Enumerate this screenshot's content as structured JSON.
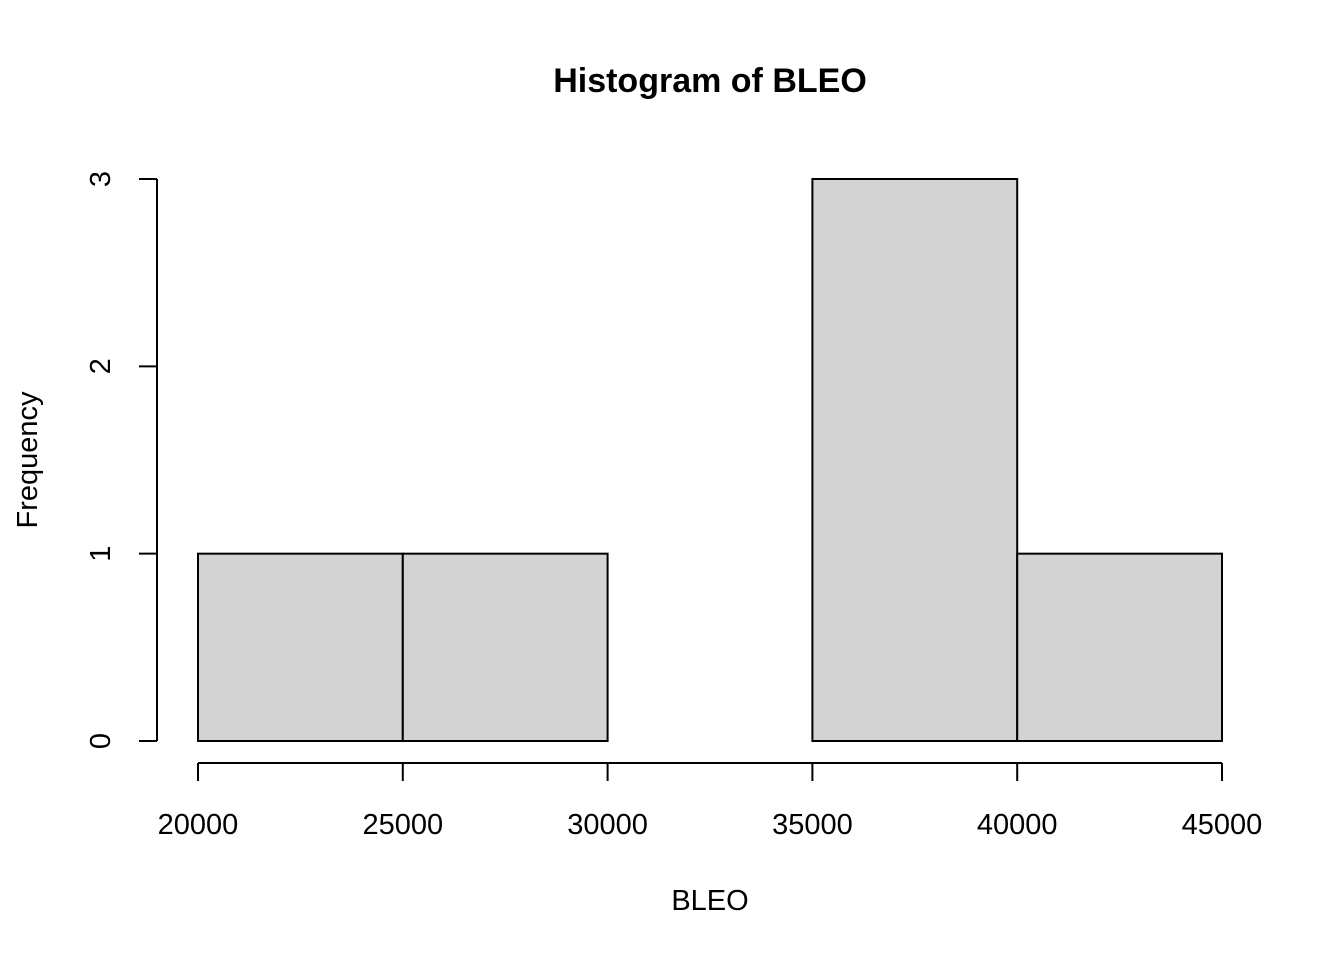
{
  "chart_data": {
    "type": "bar",
    "subtype": "histogram",
    "title": "Histogram of BLEO",
    "xlabel": "BLEO",
    "ylabel": "Frequency",
    "bins": [
      {
        "start": 20000,
        "end": 25000,
        "count": 1
      },
      {
        "start": 25000,
        "end": 30000,
        "count": 1
      },
      {
        "start": 30000,
        "end": 35000,
        "count": 0
      },
      {
        "start": 35000,
        "end": 40000,
        "count": 3
      },
      {
        "start": 40000,
        "end": 45000,
        "count": 1
      }
    ],
    "xlim": [
      20000,
      45000
    ],
    "ylim": [
      0,
      3
    ],
    "xticks": [
      20000,
      25000,
      30000,
      35000,
      40000,
      45000
    ],
    "yticks": [
      0,
      1,
      2,
      3
    ],
    "grid": false,
    "legend": "none",
    "colors": {
      "bar_fill": "#d3d3d3",
      "bar_stroke": "#000000",
      "background": "#ffffff"
    }
  }
}
